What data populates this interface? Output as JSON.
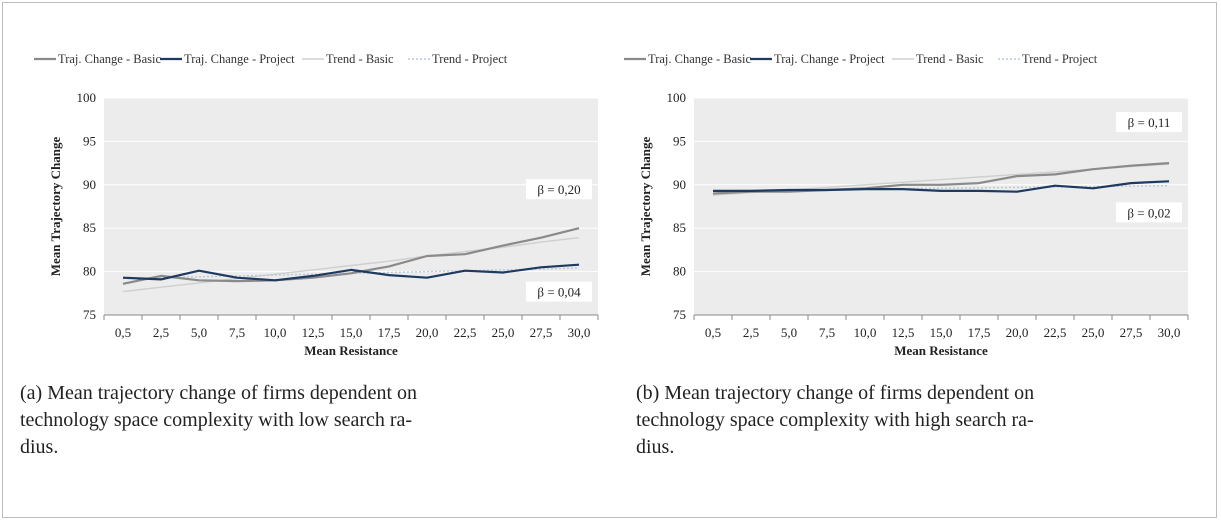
{
  "legend": {
    "basic": "Traj. Change - Basic",
    "project": "Traj. Change - Project",
    "trend_basic": "Trend - Basic",
    "trend_project": "Trend - Project"
  },
  "captions": [
    "(a) Mean trajectory change of firms dependent on technology space complexity with low search ra-dius.",
    "(b) Mean trajectory change of firms dependent on technology space complexity with high search ra-dius."
  ],
  "caption_lines": [
    [
      "(a) Mean trajectory change of firms dependent on",
      "technology space complexity with low search ra-",
      "dius."
    ],
    [
      "(b) Mean trajectory change of firms dependent on",
      "technology space complexity with high search ra-",
      "dius."
    ]
  ],
  "colors": {
    "basic": "#8a8a8a",
    "project": "#1f3a60",
    "trend_basic": "#cfcfcf",
    "trend_project": "#b8c8da",
    "plot_bg": "#ececec",
    "grid": "#ffffff"
  },
  "chart_data": [
    {
      "type": "line",
      "xlabel": "Mean Resistance",
      "ylabel": "Mean Trajectory Change",
      "categories": [
        "0,5",
        "2,5",
        "5,0",
        "7,5",
        "10,0",
        "12,5",
        "15,0",
        "17,5",
        "20,0",
        "22,5",
        "25,0",
        "27,5",
        "30,0"
      ],
      "ylim": [
        75,
        100
      ],
      "yticks": [
        75,
        80,
        85,
        90,
        95,
        100
      ],
      "grid": true,
      "legend": "top",
      "series": [
        {
          "name": "Traj. Change - Basic",
          "values": [
            78.6,
            79.5,
            79.0,
            78.9,
            79.0,
            79.3,
            79.8,
            80.6,
            81.8,
            82.0,
            83.0,
            83.9,
            85.0
          ]
        },
        {
          "name": "Traj. Change - Project",
          "values": [
            79.3,
            79.1,
            80.1,
            79.3,
            79.0,
            79.5,
            80.2,
            79.6,
            79.3,
            80.1,
            79.9,
            80.5,
            80.8
          ]
        },
        {
          "name": "Trend - Basic",
          "values": [
            77.7,
            78.2,
            78.7,
            79.2,
            79.7,
            80.2,
            80.7,
            81.2,
            81.8,
            82.3,
            82.8,
            83.4,
            83.9
          ]
        },
        {
          "name": "Trend - Project",
          "values": [
            79.2,
            79.3,
            79.4,
            79.5,
            79.6,
            79.7,
            79.8,
            79.9,
            80.0,
            80.1,
            80.2,
            80.3,
            80.4
          ]
        }
      ],
      "annotations": [
        {
          "text": "β = 0,20",
          "series": 0
        },
        {
          "text": "β = 0,04",
          "series": 1
        }
      ]
    },
    {
      "type": "line",
      "xlabel": "Mean Resistance",
      "ylabel": "Mean Trajectory Change",
      "categories": [
        "0,5",
        "2,5",
        "5,0",
        "7,5",
        "10,0",
        "12,5",
        "15,0",
        "17,5",
        "20,0",
        "22,5",
        "25,0",
        "27,5",
        "30,0"
      ],
      "ylim": [
        75,
        100
      ],
      "yticks": [
        75,
        80,
        85,
        90,
        95,
        100
      ],
      "grid": true,
      "legend": "top",
      "series": [
        {
          "name": "Traj. Change - Basic",
          "values": [
            89.0,
            89.2,
            89.2,
            89.4,
            89.6,
            90.0,
            90.0,
            90.2,
            91.0,
            91.2,
            91.8,
            92.2,
            92.5
          ]
        },
        {
          "name": "Traj. Change - Project",
          "values": [
            89.3,
            89.3,
            89.4,
            89.4,
            89.5,
            89.5,
            89.3,
            89.3,
            89.2,
            89.9,
            89.6,
            90.2,
            90.4
          ]
        },
        {
          "name": "Trend - Basic",
          "values": [
            88.8,
            89.1,
            89.4,
            89.7,
            90.0,
            90.3,
            90.6,
            90.9,
            91.2,
            91.5,
            91.8,
            92.1,
            92.4
          ]
        },
        {
          "name": "Trend - Project",
          "values": [
            89.3,
            89.35,
            89.4,
            89.45,
            89.5,
            89.55,
            89.6,
            89.65,
            89.7,
            89.75,
            89.8,
            89.85,
            89.9
          ]
        }
      ],
      "annotations": [
        {
          "text": "β = 0,11",
          "series": 0
        },
        {
          "text": "β = 0,02",
          "series": 1
        }
      ]
    }
  ]
}
